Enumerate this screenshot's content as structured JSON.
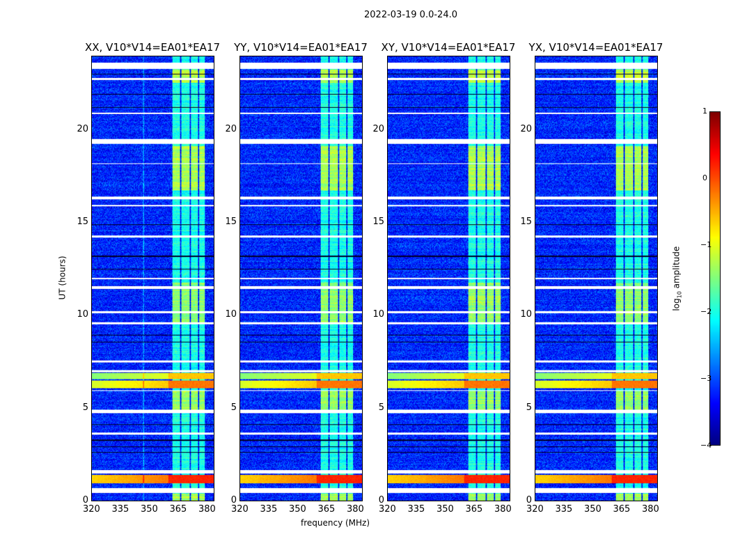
{
  "chart_data": {
    "type": "heatmap",
    "title": "2022-03-19 0.0-24.0",
    "xlabel": "frequency (MHz)",
    "ylabel": "UT (hours)",
    "xlim": [
      320,
      384
    ],
    "ylim": [
      0,
      24
    ],
    "xticks": [
      "320",
      "335",
      "350",
      "365",
      "380"
    ],
    "xtick_values": [
      320,
      335,
      350,
      365,
      380
    ],
    "yticks": [
      "0",
      "5",
      "10",
      "15",
      "20"
    ],
    "ytick_values": [
      0,
      5,
      10,
      15,
      20
    ],
    "panels": [
      {
        "title": "XX, V10*V14=EA01*EA17"
      },
      {
        "title": "YY, V10*V14=EA01*EA17"
      },
      {
        "title": "XY, V10*V14=EA01*EA17"
      },
      {
        "title": "YX, V10*V14=EA01*EA17"
      }
    ],
    "colorbar": {
      "label_main": "log",
      "label_sub": "10",
      "label_rest": " amplitude",
      "range": [
        -4,
        1
      ],
      "ticks": [
        "1",
        "0",
        "−1",
        "−2",
        "−3",
        "−4"
      ],
      "tick_values": [
        1,
        0,
        -1,
        -2,
        -3,
        -4
      ],
      "colormap": "jet"
    },
    "background_level": -3.2,
    "rfi_band_MHz": [
      362,
      379
    ],
    "rfi_subband_gaps_MHz": [
      366.5,
      371.5,
      376
    ],
    "rfi_band_level_by_time": [
      {
        "ut": [
          0,
          24
        ],
        "level": -2.0
      },
      {
        "ut": [
          16.8,
          19.2
        ],
        "level": -1.3
      },
      {
        "ut": [
          9.6,
          11.8
        ],
        "level": -1.4
      },
      {
        "ut": [
          4.9,
          6.0
        ],
        "level": -1.4
      },
      {
        "ut": [
          22.6,
          23.3
        ],
        "level": -1.2
      },
      {
        "ut": [
          0,
          0.4
        ],
        "level": -1.3
      }
    ],
    "broadband_rfi": [
      {
        "ut": [
          6.1,
          6.5
        ],
        "level": -0.6
      },
      {
        "ut": [
          6.6,
          6.9
        ],
        "level": -1.0
      },
      {
        "ut": [
          0.95,
          1.4
        ],
        "level": -0.2
      }
    ],
    "flagged_ut_white": [
      [
        23.35,
        23.7
      ],
      [
        22.75,
        22.85
      ],
      [
        19.3,
        19.55
      ],
      [
        16.3,
        16.45
      ],
      [
        15.9,
        16.0
      ],
      [
        14.25,
        14.35
      ],
      [
        11.45,
        11.6
      ],
      [
        10.15,
        10.25
      ],
      [
        9.55,
        9.65
      ],
      [
        7.5,
        7.6
      ],
      [
        6.95,
        7.05
      ],
      [
        5.95,
        6.0
      ],
      [
        4.75,
        4.95
      ],
      [
        3.6,
        3.7
      ],
      [
        1.5,
        1.65
      ],
      [
        0.45,
        0.7
      ],
      [
        20.9,
        21.0
      ],
      [
        18.2,
        18.25
      ],
      [
        12.0,
        12.05
      ]
    ],
    "flagged_ut_black": [
      [
        23.05,
        23.1
      ],
      [
        21.95,
        22.0
      ],
      [
        21.25,
        21.3
      ],
      [
        8.55,
        8.6
      ],
      [
        8.95,
        9.0
      ],
      [
        2.9,
        2.95
      ],
      [
        2.6,
        2.65
      ],
      [
        3.25,
        3.3
      ],
      [
        4.1,
        4.15
      ],
      [
        13.2,
        13.25
      ],
      [
        12.5,
        12.55
      ],
      [
        14.9,
        14.95
      ]
    ]
  }
}
